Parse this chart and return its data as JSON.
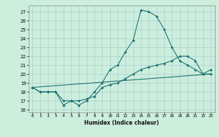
{
  "xlabel": "Humidex (Indice chaleur)",
  "bg_color": "#cceedd",
  "grid_color": "#aacccc",
  "line_color": "#1a7070",
  "xlim": [
    -0.5,
    23.5
  ],
  "ylim": [
    15.7,
    27.7
  ],
  "yticks": [
    16,
    17,
    18,
    19,
    20,
    21,
    22,
    23,
    24,
    25,
    26,
    27
  ],
  "xticks": [
    0,
    1,
    2,
    3,
    4,
    5,
    6,
    7,
    8,
    9,
    10,
    11,
    12,
    13,
    14,
    15,
    16,
    17,
    18,
    19,
    20,
    21,
    22,
    23
  ],
  "line1_x": [
    0,
    1,
    2,
    3,
    4,
    5,
    6,
    7,
    8,
    9,
    10,
    11,
    12,
    13,
    14,
    15,
    16,
    17,
    18,
    19,
    20,
    21,
    22,
    23
  ],
  "line1_y": [
    18.5,
    18.0,
    18.0,
    18.0,
    16.5,
    17.0,
    16.5,
    17.0,
    18.0,
    19.0,
    20.5,
    21.0,
    22.5,
    23.8,
    27.2,
    27.0,
    26.5,
    25.0,
    23.0,
    21.5,
    21.0,
    20.5,
    20.0,
    20.5
  ],
  "line2_x": [
    0,
    1,
    2,
    3,
    4,
    5,
    6,
    7,
    8,
    9,
    10,
    11,
    12,
    13,
    14,
    15,
    16,
    17,
    18,
    19,
    20,
    21,
    22,
    23
  ],
  "line2_y": [
    18.5,
    18.0,
    18.0,
    18.0,
    17.0,
    17.0,
    17.0,
    17.2,
    17.5,
    18.5,
    18.8,
    19.0,
    19.5,
    20.0,
    20.5,
    20.8,
    21.0,
    21.2,
    21.5,
    22.0,
    22.0,
    21.5,
    20.0,
    20.0
  ],
  "line3_x": [
    0,
    23
  ],
  "line3_y": [
    18.5,
    20.0
  ]
}
